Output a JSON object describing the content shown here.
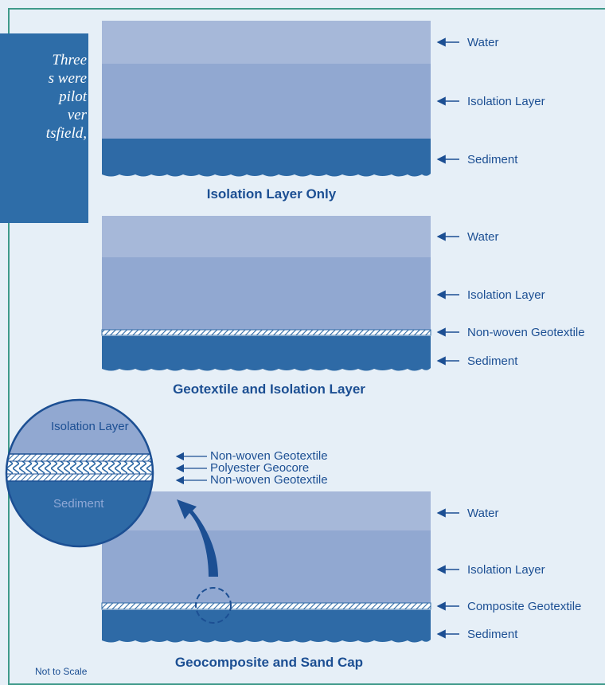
{
  "caption": "Three\ns were\npilot\nver\ntsfield,",
  "colors": {
    "water": "#a6b8d9",
    "isolation": "#91a8d1",
    "sediment": "#2e6aa6",
    "label": "#1c4f93",
    "frame": "#3f9a8a",
    "caption_box": "#2e6da8"
  },
  "panels": [
    {
      "title": "Isolation Layer Only",
      "labels": [
        "Water",
        "Isolation Layer",
        "Sediment"
      ]
    },
    {
      "title": "Geotextile and Isolation Layer",
      "labels": [
        "Water",
        "Isolation Layer",
        "Non-woven Geotextile",
        "Sediment"
      ]
    },
    {
      "title": "Geocomposite and Sand Cap",
      "labels": [
        "Water",
        "Isolation Layer",
        "Composite Geotextile",
        "Sediment"
      ]
    }
  ],
  "detail": {
    "top_label": "Isolation Layer",
    "bottom_label": "Sediment",
    "callouts": [
      "Non-woven Geotextile",
      "Polyester Geocore",
      "Non-woven Geotextile"
    ]
  },
  "footnote": "Not to Scale"
}
